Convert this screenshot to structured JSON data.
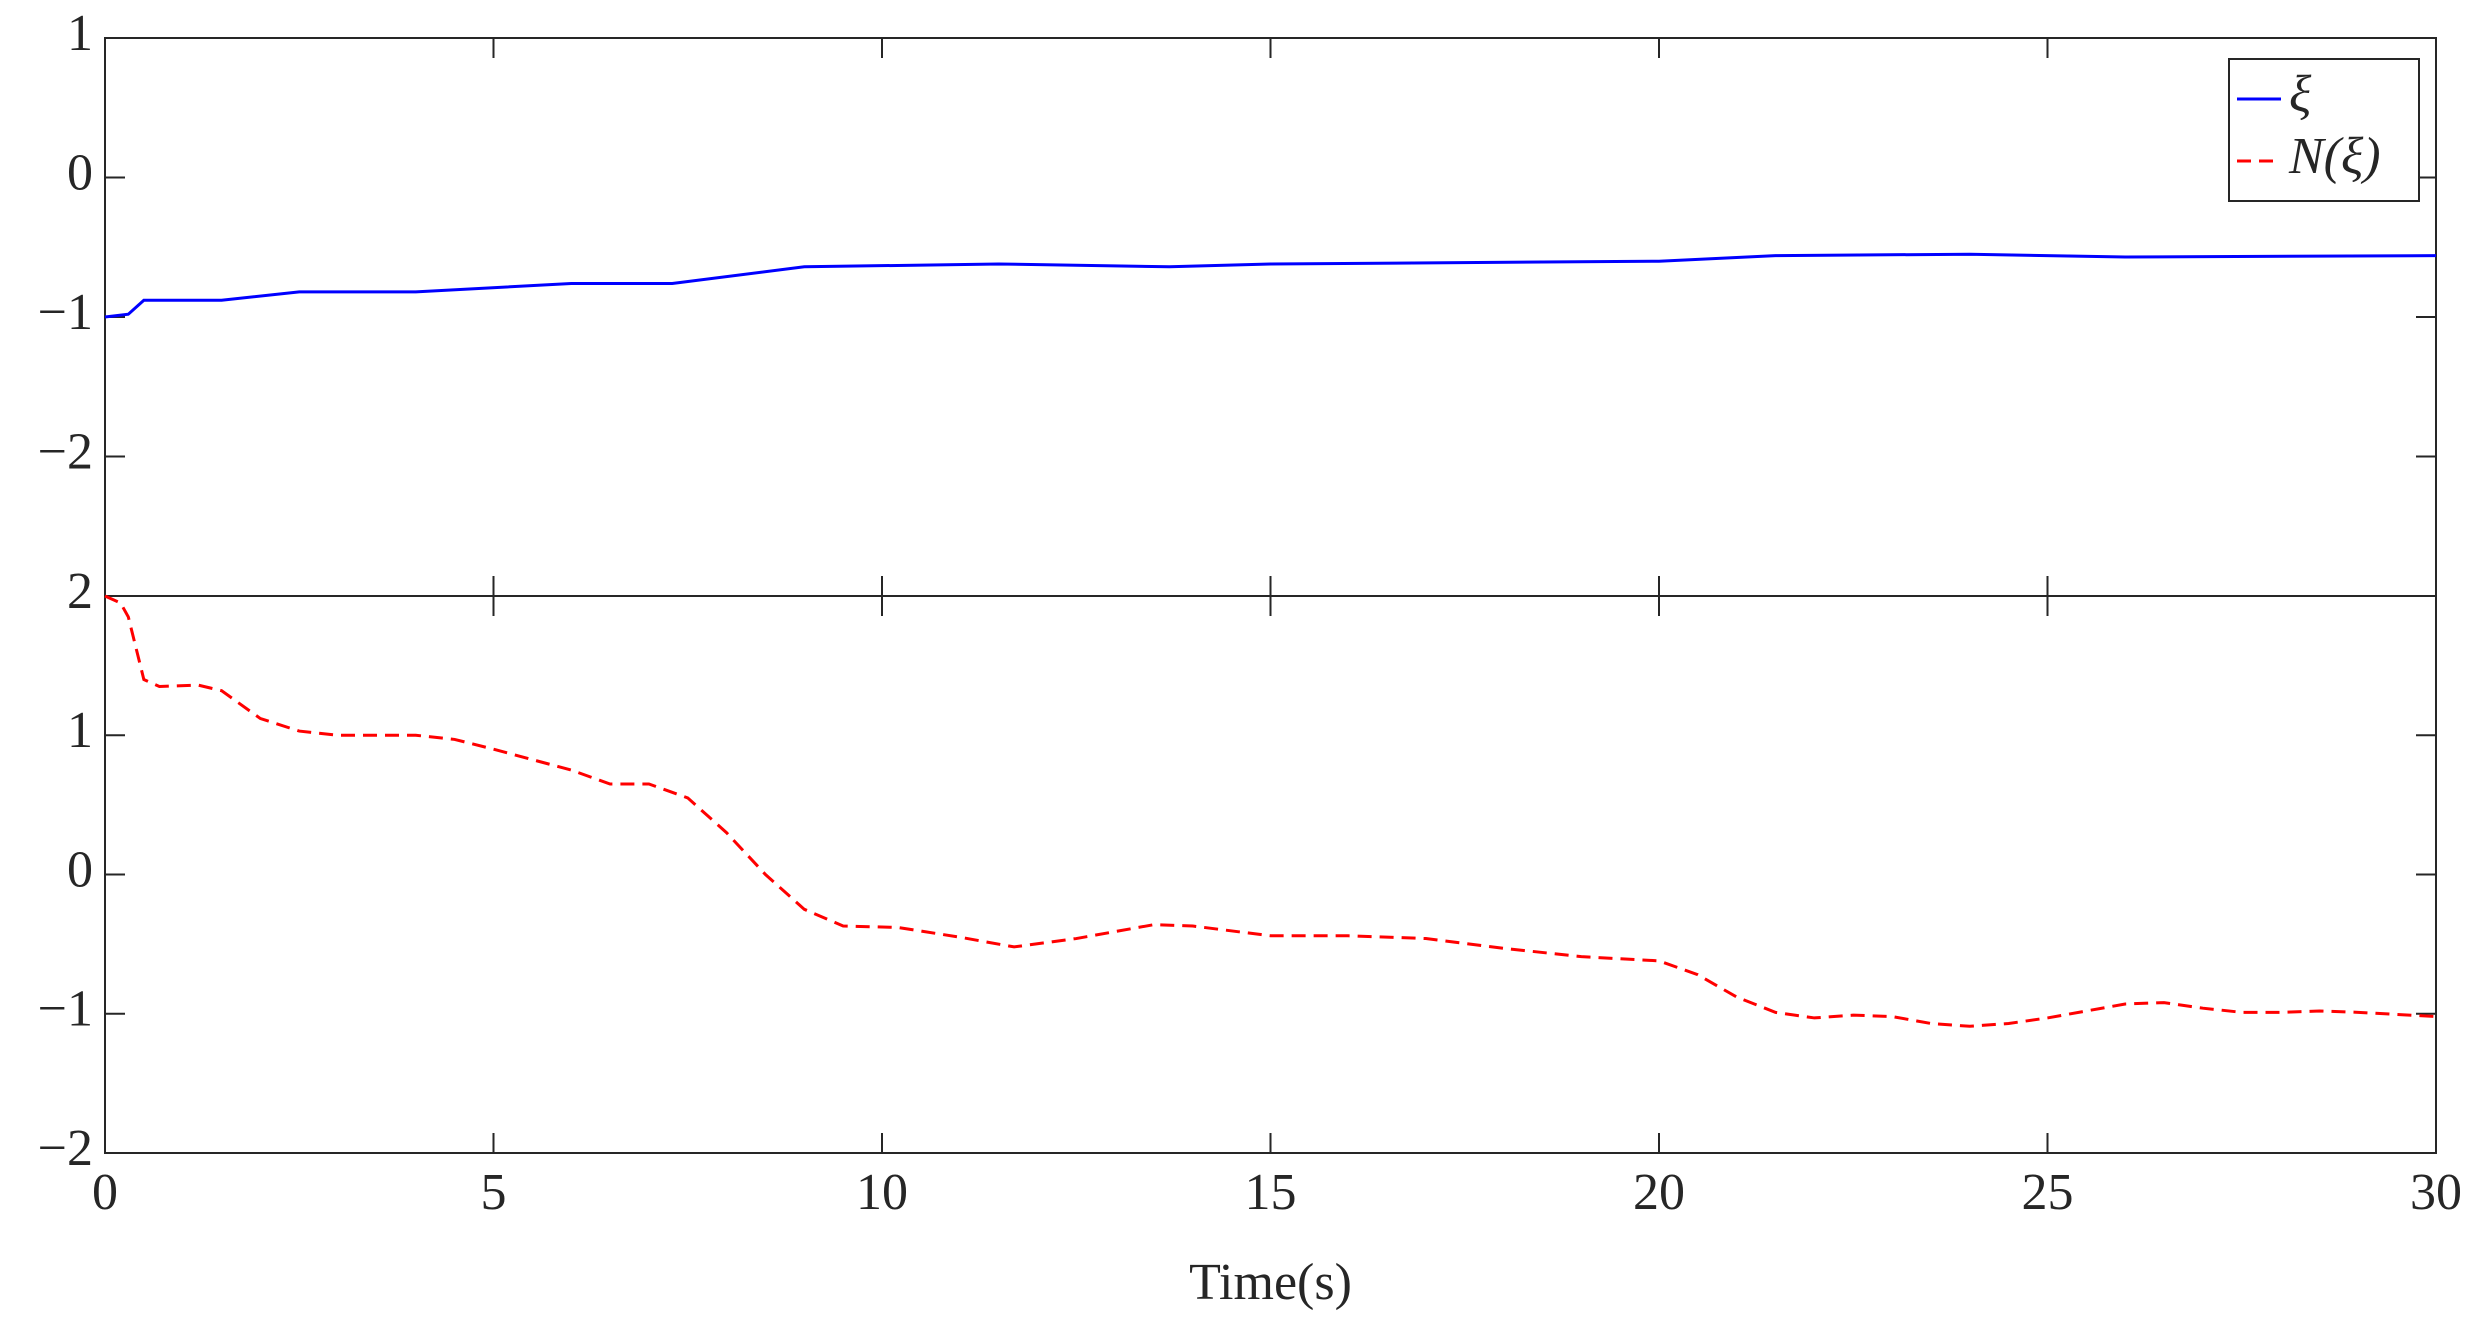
{
  "chart_data": [
    {
      "type": "line",
      "xlim": [
        0,
        30
      ],
      "ylim": [
        -3,
        1
      ],
      "yticks": [
        {
          "value": -2,
          "label": "−2"
        },
        {
          "value": -1,
          "label": "−1"
        },
        0,
        1
      ],
      "legend": "upper right",
      "x": [
        0,
        0.3,
        0.5,
        1.5,
        2.5,
        4,
        6,
        7.3,
        9,
        11.5,
        13.7,
        15,
        20,
        21.5,
        24,
        26,
        30
      ],
      "series": [
        {
          "name": "ξ",
          "color": "#0000ff",
          "dash": "solid",
          "values": [
            -1,
            -0.98,
            -0.88,
            -0.88,
            -0.82,
            -0.82,
            -0.76,
            -0.76,
            -0.64,
            -0.62,
            -0.64,
            -0.62,
            -0.6,
            -0.56,
            -0.55,
            -0.57,
            -0.56
          ]
        }
      ]
    },
    {
      "type": "line",
      "xlim": [
        0,
        30
      ],
      "ylim": [
        -2,
        2
      ],
      "xlabel": "Time(s)",
      "xticks": [
        0,
        5,
        10,
        15,
        20,
        25,
        30
      ],
      "yticks": [
        {
          "value": -2,
          "label": "−2"
        },
        {
          "value": -1,
          "label": "−1"
        },
        0,
        1,
        2
      ],
      "x": [
        0,
        0.2,
        0.3,
        0.5,
        0.7,
        1.2,
        1.5,
        2,
        2.5,
        3,
        4,
        4.5,
        5,
        6,
        6.5,
        7,
        7.5,
        8,
        8.5,
        9,
        9.5,
        10.2,
        11,
        11.7,
        12.5,
        13.5,
        14,
        15,
        16,
        17,
        18,
        19,
        20,
        20.5,
        21,
        21.5,
        22,
        22.5,
        23,
        23.5,
        24,
        24.5,
        25,
        26,
        26.5,
        27,
        27.5,
        28,
        28.5,
        29,
        30
      ],
      "series": [
        {
          "name": "N(ξ)",
          "color": "#ff0000",
          "dash": "dashed",
          "values": [
            2,
            1.95,
            1.85,
            1.4,
            1.35,
            1.36,
            1.32,
            1.12,
            1.03,
            1,
            1,
            0.97,
            0.9,
            0.75,
            0.65,
            0.65,
            0.55,
            0.3,
            0,
            -0.25,
            -0.37,
            -0.38,
            -0.45,
            -0.52,
            -0.46,
            -0.36,
            -0.37,
            -0.44,
            -0.44,
            -0.46,
            -0.53,
            -0.59,
            -0.62,
            -0.72,
            -0.88,
            -0.99,
            -1.03,
            -1.01,
            -1.02,
            -1.07,
            -1.09,
            -1.07,
            -1.03,
            -0.93,
            -0.92,
            -0.96,
            -0.99,
            -0.99,
            -0.98,
            -0.99,
            -1.02
          ]
        }
      ]
    }
  ]
}
